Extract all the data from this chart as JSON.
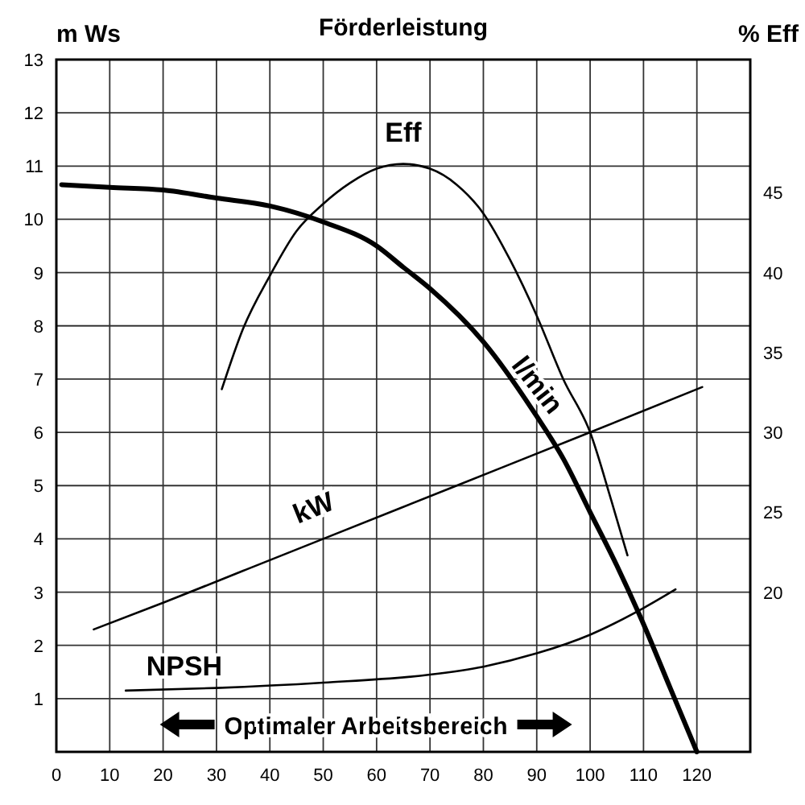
{
  "chart_data": {
    "type": "line",
    "title": "Förderleistung",
    "ylabel": "m Ws",
    "y2label": "% Eff",
    "xlim": [
      0,
      130
    ],
    "xticks": [
      0,
      10,
      20,
      30,
      40,
      50,
      60,
      70,
      80,
      90,
      100,
      110,
      120
    ],
    "ylim": [
      0,
      13
    ],
    "yticks": [
      1,
      2,
      3,
      4,
      5,
      6,
      7,
      8,
      9,
      10,
      11,
      12,
      13
    ],
    "y2lim": [
      10,
      53.33
    ],
    "y2ticks": [
      20,
      25,
      30,
      35,
      40,
      45
    ],
    "grid": true,
    "legend": false,
    "marker": "none",
    "line_style": "solid",
    "series": [
      {
        "name": "l/min",
        "color": "#000000",
        "x": [
          1,
          10,
          20,
          30,
          40,
          50,
          60,
          65,
          70,
          80,
          90,
          95,
          100,
          105,
          110,
          115,
          120
        ],
        "values": [
          10.65,
          10.6,
          10.55,
          10.4,
          10.25,
          9.95,
          9.5,
          9.1,
          8.7,
          7.7,
          6.3,
          5.5,
          4.5,
          3.5,
          2.4,
          1.2,
          0
        ]
      },
      {
        "name": "Eff",
        "color": "#000000",
        "axis": "y2",
        "x": [
          31,
          35,
          40,
          45,
          50,
          55,
          60,
          65,
          70,
          75,
          80,
          85,
          90,
          95,
          100,
          104,
          107
        ],
        "values": [
          32.7,
          36.5,
          39.8,
          42.6,
          44.3,
          45.6,
          46.5,
          46.8,
          46.5,
          45.5,
          43.7,
          40.8,
          37.3,
          33.3,
          30,
          25.7,
          22.3
        ]
      },
      {
        "name": "kW",
        "color": "#000000",
        "x": [
          7,
          20,
          35,
          50,
          75,
          100,
          121
        ],
        "values": [
          2.3,
          2.8,
          3.4,
          4.0,
          5.0,
          6.0,
          6.85
        ]
      },
      {
        "name": "NPSH",
        "color": "#000000",
        "x": [
          13,
          30,
          50,
          70,
          80,
          90,
          100,
          110,
          116
        ],
        "values": [
          1.15,
          1.2,
          1.3,
          1.45,
          1.6,
          1.85,
          2.2,
          2.7,
          3.05
        ]
      }
    ],
    "annotations": [
      "Optimaler Arbeitsbereich"
    ]
  }
}
